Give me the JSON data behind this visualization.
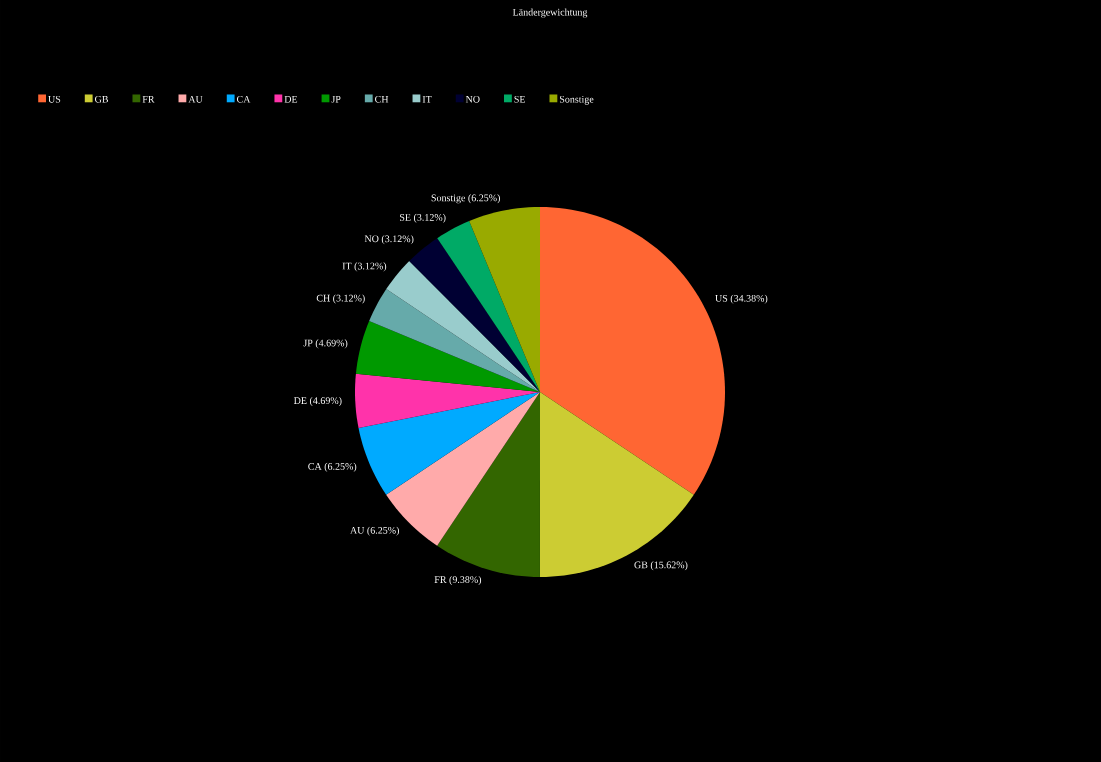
{
  "chart_data": {
    "type": "pie",
    "title": "Ländergewichtung",
    "categories": [
      "US",
      "GB",
      "FR",
      "AU",
      "CA",
      "DE",
      "JP",
      "CH",
      "IT",
      "NO",
      "SE",
      "Sonstige"
    ],
    "values": [
      34.38,
      15.62,
      9.38,
      6.25,
      6.25,
      4.69,
      4.69,
      3.12,
      3.12,
      3.12,
      3.12,
      6.25
    ],
    "value_labels": [
      "US (34.38%)",
      "GB (15.62%)",
      "FR (9.38%)",
      "AU (6.25%)",
      "CA (6.25%)",
      "DE (4.69%)",
      "JP (4.69%)",
      "CH (3.12%)",
      "IT (3.12%)",
      "NO (3.12%)",
      "SE (3.12%)",
      "Sonstige (6.25%)"
    ],
    "colors": [
      "#ff6633",
      "#cccc33",
      "#336600",
      "#ffaaaa",
      "#00aaff",
      "#ff33aa",
      "#009900",
      "#66aaaa",
      "#99cccc",
      "#000033",
      "#00aa66",
      "#99aa00"
    ],
    "legend": "top left"
  }
}
